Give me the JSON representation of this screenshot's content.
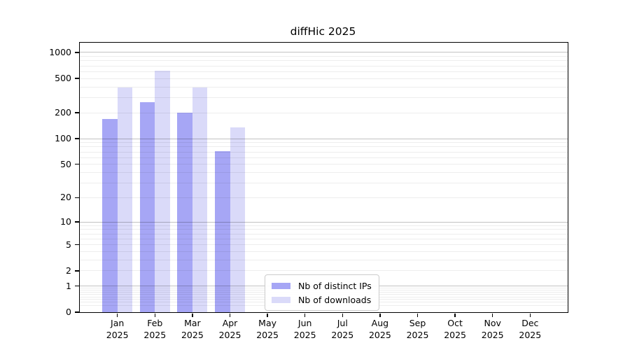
{
  "figure": {
    "background": "#ffffff",
    "text_color": "#000000",
    "spine_color": "#000000",
    "major_grid_color": "#c2c2c2",
    "minor_grid_color": "#ececec"
  },
  "chart_data": {
    "type": "bar",
    "title": "diffHic 2025",
    "xlabel": "",
    "ylabel": "",
    "y_scale": "log10(1+x)",
    "ylim": [
      0,
      1295
    ],
    "grid": "on",
    "legend_position": "lower-center",
    "categories": [
      "Jan 2025",
      "Feb 2025",
      "Mar 2025",
      "Apr 2025",
      "May 2025",
      "Jun 2025",
      "Jul 2025",
      "Aug 2025",
      "Sep 2025",
      "Oct 2025",
      "Nov 2025",
      "Dec 2025"
    ],
    "series": [
      {
        "name": "Nb of distinct IPs",
        "color": "#a6a6f5",
        "values": [
          170,
          263,
          199,
          72,
          null,
          null,
          null,
          null,
          null,
          null,
          null,
          null
        ]
      },
      {
        "name": "Nb of downloads",
        "color": "#dadaf9",
        "values": [
          390,
          610,
          395,
          134,
          null,
          null,
          null,
          null,
          null,
          null,
          null,
          null
        ]
      }
    ],
    "y_ticks": [
      0,
      1,
      2,
      5,
      10,
      20,
      50,
      100,
      200,
      500,
      1000
    ],
    "y_tick_labels": [
      "0",
      "1",
      "2",
      "5",
      "10",
      "20",
      "50",
      "100",
      "200",
      "500",
      "1000"
    ],
    "y_major_gridlines": [
      1,
      10,
      100,
      1000
    ],
    "y_minor_gridlines": [
      0.2,
      0.3,
      0.4,
      0.5,
      0.6,
      0.7,
      0.8,
      0.9,
      2,
      3,
      4,
      5,
      6,
      7,
      8,
      9,
      20,
      30,
      40,
      50,
      60,
      70,
      80,
      90,
      200,
      300,
      400,
      500,
      600,
      700,
      800,
      900
    ]
  }
}
